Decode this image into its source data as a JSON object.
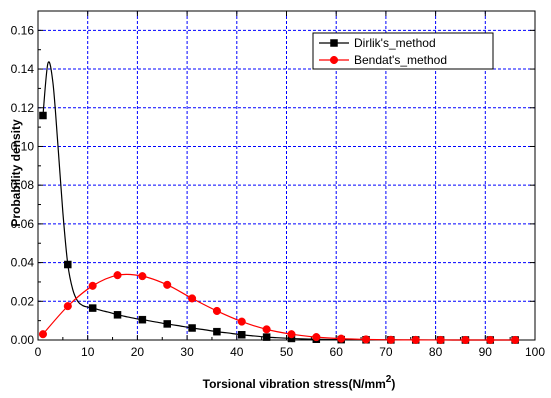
{
  "chart_data": {
    "type": "line",
    "title": "",
    "xlabel": "Torsional vibration stress(N/mm",
    "xlabel_superscript": "2",
    "xlabel_suffix": ")",
    "ylabel": "Probability density",
    "xlim": [
      0,
      100
    ],
    "ylim": [
      0,
      0.17
    ],
    "xticks": [
      0,
      10,
      20,
      30,
      40,
      50,
      60,
      70,
      80,
      90,
      100
    ],
    "xtick_labels": [
      "0",
      "10",
      "20",
      "30",
      "40",
      "50",
      "60",
      "70",
      "80",
      "90",
      "100"
    ],
    "yticks": [
      0,
      0.02,
      0.04,
      0.06,
      0.08,
      0.1,
      0.12,
      0.14,
      0.16
    ],
    "ytick_labels": [
      "0.00",
      "0.02",
      "0.04",
      "0.06",
      "0.08",
      "0.10",
      "0.12",
      "0.14",
      "0.16"
    ],
    "grid": true,
    "grid_color": "#0000ff",
    "legend_position": "top-right",
    "series": [
      {
        "name": "Dirlik's_method",
        "color": "#000000",
        "marker": "square",
        "x": [
          1,
          6,
          11,
          16,
          21,
          26,
          31,
          36,
          41,
          46,
          51,
          56,
          61,
          66,
          71,
          76,
          81,
          86,
          91,
          96
        ],
        "y": [
          0.116,
          0.039,
          0.0165,
          0.013,
          0.0105,
          0.0083,
          0.0062,
          0.0043,
          0.0027,
          0.0015,
          0.0008,
          0.0004,
          0.0002,
          0.0001,
          5e-05,
          3e-05,
          2e-05,
          1e-05,
          1e-05,
          1e-05
        ],
        "curve_x": [
          1,
          2,
          3,
          4,
          5,
          6,
          7,
          8,
          9,
          10,
          11,
          12,
          13,
          14,
          15,
          16,
          17,
          18,
          19,
          20,
          21,
          22,
          23,
          24,
          25,
          26,
          28,
          31,
          33,
          36,
          38,
          41,
          43,
          46,
          48,
          51,
          53,
          56,
          58,
          61,
          66,
          71,
          76,
          81,
          86,
          91,
          96
        ],
        "curve_y": [
          0.116,
          0.143,
          0.133,
          0.101,
          0.066,
          0.039,
          0.026,
          0.02,
          0.0178,
          0.017,
          0.0165,
          0.0158,
          0.0151,
          0.0145,
          0.0138,
          0.013,
          0.0125,
          0.0119,
          0.0114,
          0.0109,
          0.0105,
          0.0101,
          0.0096,
          0.0092,
          0.0087,
          0.0083,
          0.0075,
          0.0062,
          0.0055,
          0.0043,
          0.0037,
          0.0027,
          0.0022,
          0.0015,
          0.0012,
          0.0008,
          0.0006,
          0.0004,
          0.0003,
          0.0002,
          0.0001,
          5e-05,
          3e-05,
          2e-05,
          1e-05,
          1e-05,
          1e-05
        ]
      },
      {
        "name": "Bendat's_method",
        "color": "#ff0000",
        "marker": "circle",
        "x": [
          1,
          6,
          11,
          16,
          21,
          26,
          31,
          36,
          41,
          46,
          51,
          56,
          61,
          66,
          71,
          76,
          81,
          86,
          91,
          96
        ],
        "y": [
          0.003,
          0.0175,
          0.028,
          0.0335,
          0.033,
          0.0285,
          0.0215,
          0.015,
          0.0095,
          0.0055,
          0.003,
          0.0015,
          0.0007,
          0.0003,
          0.0001,
          5e-05,
          2e-05,
          1e-05,
          1e-05,
          1e-05
        ]
      }
    ]
  }
}
